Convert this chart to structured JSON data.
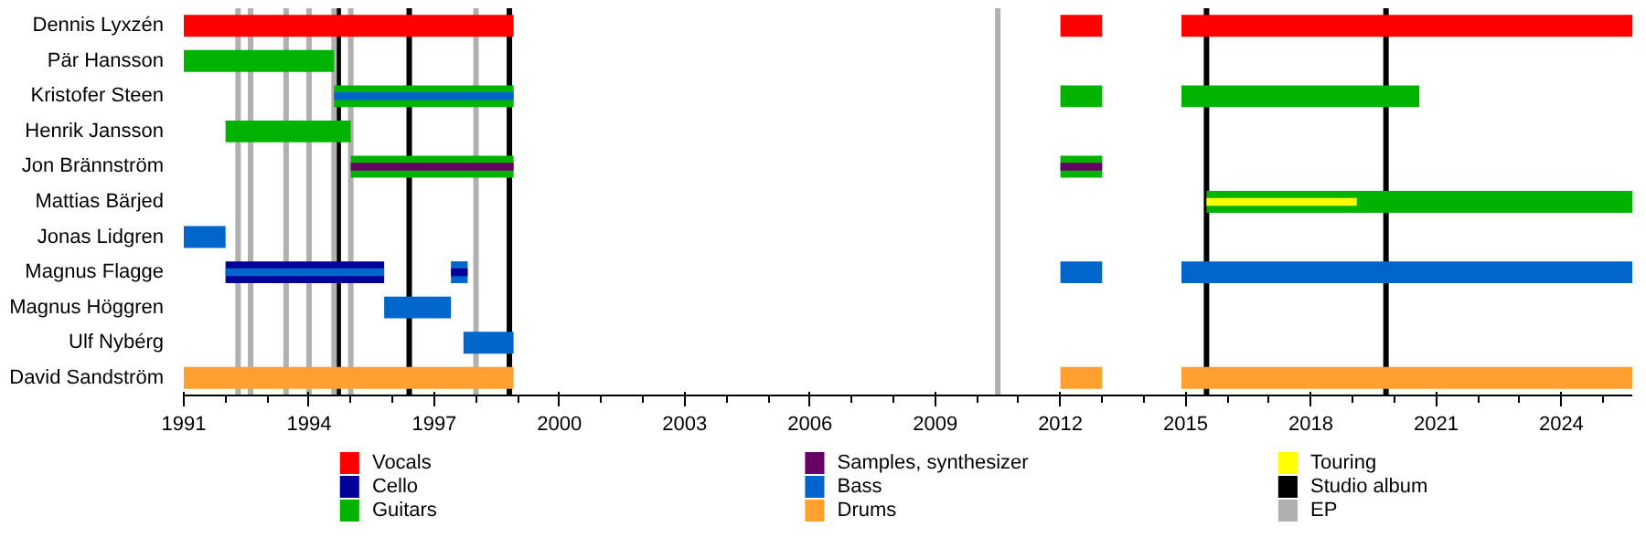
{
  "chart_data": {
    "type": "bar",
    "orientation": "horizontal",
    "legend": "bottom",
    "categories": [
      "Dennis Lyxzén",
      "Pär Hansson",
      "Kristofer Steen",
      "Henrik Jansson",
      "Jon Brännström",
      "Mattias Bärjed",
      "Jonas Lidgren",
      "Magnus Flagge",
      "Magnus Höggren",
      "Ulf Nybérg",
      "David Sandström"
    ],
    "xlim": [
      1991,
      2025.7
    ],
    "xticks": [
      1991,
      1994,
      1997,
      2000,
      2003,
      2006,
      2009,
      2012,
      2015,
      2018,
      2021,
      2024
    ],
    "series": [
      {
        "name": "Vocals",
        "color": "#ff0000",
        "base": [
          1991,
          null,
          null,
          null,
          null,
          null,
          null,
          null,
          null,
          null,
          null
        ],
        "values": [
          7.9,
          null,
          null,
          null,
          null,
          null,
          null,
          null,
          null,
          null,
          null
        ]
      },
      {
        "name": "Cello",
        "color": "#000099",
        "base": [
          null,
          null,
          null,
          null,
          null,
          null,
          null,
          1992,
          null,
          null,
          null
        ],
        "values": [
          null,
          null,
          null,
          null,
          null,
          null,
          null,
          3.8,
          null,
          null,
          null
        ]
      },
      {
        "name": "Guitars",
        "color": "#00b300",
        "base": [
          null,
          1991,
          1994.6,
          1992,
          1995,
          2015.5,
          null,
          null,
          null,
          null,
          null
        ],
        "values": [
          null,
          3.6,
          4.3,
          3,
          3.9,
          10.2,
          null,
          null,
          null,
          null,
          null
        ]
      },
      {
        "name": "Samples, synthesizer",
        "color": "#660066",
        "base": [
          null,
          null,
          null,
          null,
          1995,
          null,
          null,
          null,
          null,
          null,
          null
        ],
        "values": [
          null,
          null,
          null,
          null,
          3.9,
          null,
          null,
          null,
          null,
          null,
          null
        ]
      },
      {
        "name": "Bass",
        "color": "#0066cc",
        "base": [
          null,
          null,
          null,
          null,
          null,
          null,
          1991,
          1992,
          1995.8,
          1997.7,
          null
        ],
        "values": [
          null,
          null,
          null,
          null,
          null,
          null,
          1,
          3.8,
          1.6,
          1.2,
          null
        ]
      },
      {
        "name": "Drums",
        "color": "#ffa030",
        "base": [
          null,
          null,
          null,
          null,
          null,
          null,
          null,
          null,
          null,
          null,
          1991
        ],
        "values": [
          null,
          null,
          null,
          null,
          null,
          null,
          null,
          null,
          null,
          null,
          7.9
        ]
      },
      {
        "name": "Touring",
        "color": "#ffff00",
        "base": [
          null,
          null,
          null,
          null,
          null,
          2015.5,
          null,
          null,
          null,
          null,
          null
        ],
        "values": [
          null,
          null,
          null,
          null,
          null,
          3.6,
          null,
          null,
          null,
          null,
          null
        ]
      },
      {
        "color": "#ff0000",
        "base": [
          2012,
          null,
          null,
          null,
          null,
          null,
          null,
          null,
          null,
          null,
          null
        ],
        "values": [
          1,
          null,
          null,
          null,
          null,
          null,
          null,
          null,
          null,
          null,
          null
        ]
      },
      {
        "color": "#ff0000",
        "base": [
          2014.9,
          null,
          null,
          null,
          null,
          null,
          null,
          null,
          null,
          null,
          null
        ],
        "values": [
          10.8,
          null,
          null,
          null,
          null,
          null,
          null,
          null,
          null,
          null,
          null
        ]
      },
      {
        "color": "#00b300",
        "base": [
          null,
          null,
          2012,
          null,
          2012,
          null,
          null,
          null,
          null,
          null,
          null
        ],
        "values": [
          null,
          null,
          1,
          null,
          1,
          null,
          null,
          null,
          null,
          null,
          null
        ]
      },
      {
        "color": "#00b300",
        "base": [
          null,
          null,
          2014.9,
          null,
          null,
          null,
          null,
          null,
          null,
          null,
          null
        ],
        "values": [
          null,
          null,
          5.7,
          null,
          null,
          null,
          null,
          null,
          null,
          null,
          null
        ]
      },
      {
        "color": "#0066cc",
        "base": [
          null,
          null,
          null,
          null,
          null,
          null,
          null,
          1997.4,
          null,
          null,
          null
        ],
        "values": [
          null,
          null,
          null,
          null,
          null,
          null,
          null,
          0.4,
          null,
          null,
          null
        ]
      },
      {
        "color": "#0066cc",
        "base": [
          null,
          null,
          null,
          null,
          null,
          null,
          null,
          2012,
          null,
          null,
          null
        ],
        "values": [
          null,
          null,
          null,
          null,
          null,
          null,
          null,
          1,
          null,
          null,
          null
        ]
      },
      {
        "color": "#0066cc",
        "base": [
          null,
          null,
          null,
          null,
          null,
          null,
          null,
          2014.9,
          null,
          null,
          null
        ],
        "values": [
          null,
          null,
          null,
          null,
          null,
          null,
          null,
          10.8,
          null,
          null,
          null
        ]
      },
      {
        "color": "#ffa030",
        "base": [
          null,
          null,
          null,
          null,
          null,
          null,
          null,
          null,
          null,
          null,
          2012
        ],
        "values": [
          null,
          null,
          null,
          null,
          null,
          null,
          null,
          null,
          null,
          null,
          1
        ]
      },
      {
        "color": "#ffa030",
        "base": [
          null,
          null,
          null,
          null,
          null,
          null,
          null,
          null,
          null,
          null,
          2014.9
        ],
        "values": [
          null,
          null,
          null,
          null,
          null,
          null,
          null,
          null,
          null,
          null,
          10.8
        ]
      },
      {
        "color": "#000099",
        "base": [
          null,
          null,
          null,
          null,
          null,
          null,
          null,
          1997.4,
          null,
          null,
          null
        ],
        "values": [
          null,
          null,
          null,
          null,
          null,
          null,
          null,
          0.4,
          null,
          null,
          null
        ]
      },
      {
        "color": "#660066",
        "base": [
          null,
          null,
          null,
          null,
          2012,
          null,
          null,
          null,
          null,
          null,
          null
        ],
        "values": [
          null,
          null,
          null,
          null,
          1,
          null,
          null,
          null,
          null,
          null,
          null
        ]
      },
      {
        "color": "#0066cc",
        "base": [
          null,
          null,
          1994.6,
          null,
          null,
          null,
          null,
          null,
          null,
          null,
          null
        ],
        "values": [
          null,
          null,
          4.3,
          null,
          null,
          null,
          null,
          null,
          null,
          null,
          null
        ]
      }
    ],
    "ref_lines": [
      {
        "axis": "x",
        "value": 1994.7,
        "label": "Studio album",
        "color": "#000000"
      },
      {
        "axis": "x",
        "value": 1996.4,
        "color": "#000000"
      },
      {
        "axis": "x",
        "value": 1998.8,
        "color": "#000000"
      },
      {
        "axis": "x",
        "value": 2015.5,
        "color": "#000000"
      },
      {
        "axis": "x",
        "value": 2019.8,
        "color": "#000000"
      },
      {
        "axis": "x",
        "value": 1992.3,
        "label": "EP",
        "color": "#b0b0b0"
      },
      {
        "axis": "x",
        "value": 1992.6,
        "color": "#b0b0b0"
      },
      {
        "axis": "x",
        "value": 1993.45,
        "color": "#b0b0b0"
      },
      {
        "axis": "x",
        "value": 1994.0,
        "color": "#b0b0b0"
      },
      {
        "axis": "x",
        "value": 1994.6,
        "color": "#b0b0b0"
      },
      {
        "axis": "x",
        "value": 1995.0,
        "color": "#b0b0b0"
      },
      {
        "axis": "x",
        "value": 1998.0,
        "color": "#b0b0b0"
      },
      {
        "axis": "x",
        "value": 2010.5,
        "color": "#b0b0b0"
      }
    ]
  }
}
